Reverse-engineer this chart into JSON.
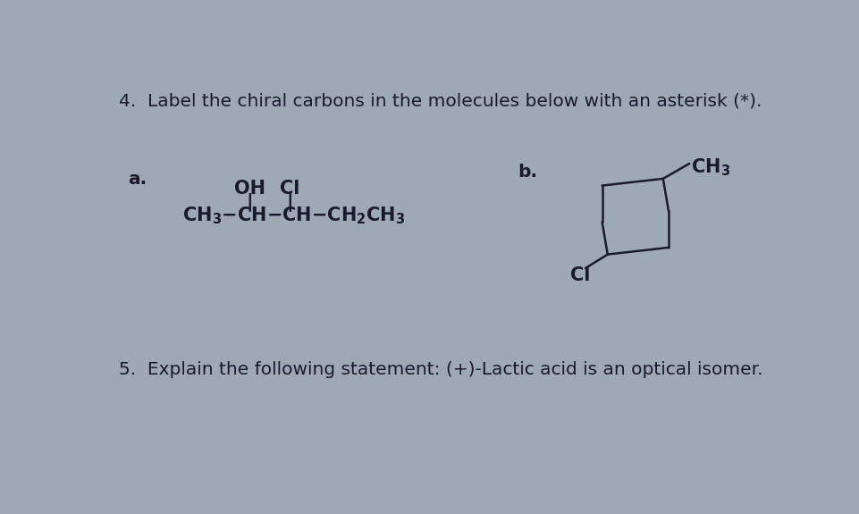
{
  "bg_color": "#9daab6",
  "title_text": "4.  Label the chiral carbons in the molecules below with an asterisk (*).",
  "label_a": "a.",
  "label_b": "b.",
  "question5": "5.  Explain the following statement: (+)-Lactic acid is an optical isomer.",
  "text_color": "#1a1a2e",
  "font_size_title": 14.5,
  "font_size_label": 14.5,
  "font_size_mol": 15,
  "font_size_q5": 14.5,
  "ring_lw": 1.8
}
